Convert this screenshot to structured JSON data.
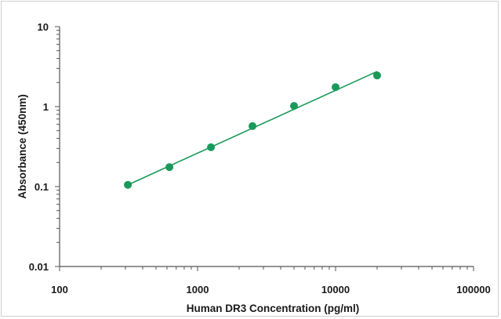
{
  "chart_data": {
    "type": "scatter",
    "title": "",
    "xlabel": "Human DR3 Concentration (pg/ml)",
    "ylabel": "Absorbance (450nm)",
    "x_scale": "log",
    "y_scale": "log",
    "xlim": [
      100,
      100000
    ],
    "ylim": [
      0.01,
      10
    ],
    "x_ticks": [
      100,
      1000,
      10000,
      100000
    ],
    "x_tick_labels": [
      "100",
      "1000",
      "10000",
      "100000"
    ],
    "y_ticks": [
      0.01,
      0.1,
      1,
      10
    ],
    "y_tick_labels": [
      "0.01",
      "0.1",
      "1",
      "10"
    ],
    "grid": false,
    "legend": "none",
    "marker_color": "#1a9a5a",
    "line_color": "#1a9a5a",
    "series": [
      {
        "x": [
          312.5,
          625,
          1250,
          2500,
          5000,
          10000,
          20000
        ],
        "y": [
          0.105,
          0.175,
          0.31,
          0.57,
          1.02,
          1.75,
          2.45
        ]
      }
    ],
    "fit": {
      "type": "linear-log-log",
      "x_range": [
        312.5,
        20000
      ],
      "y_range": [
        0.105,
        2.75
      ]
    }
  }
}
